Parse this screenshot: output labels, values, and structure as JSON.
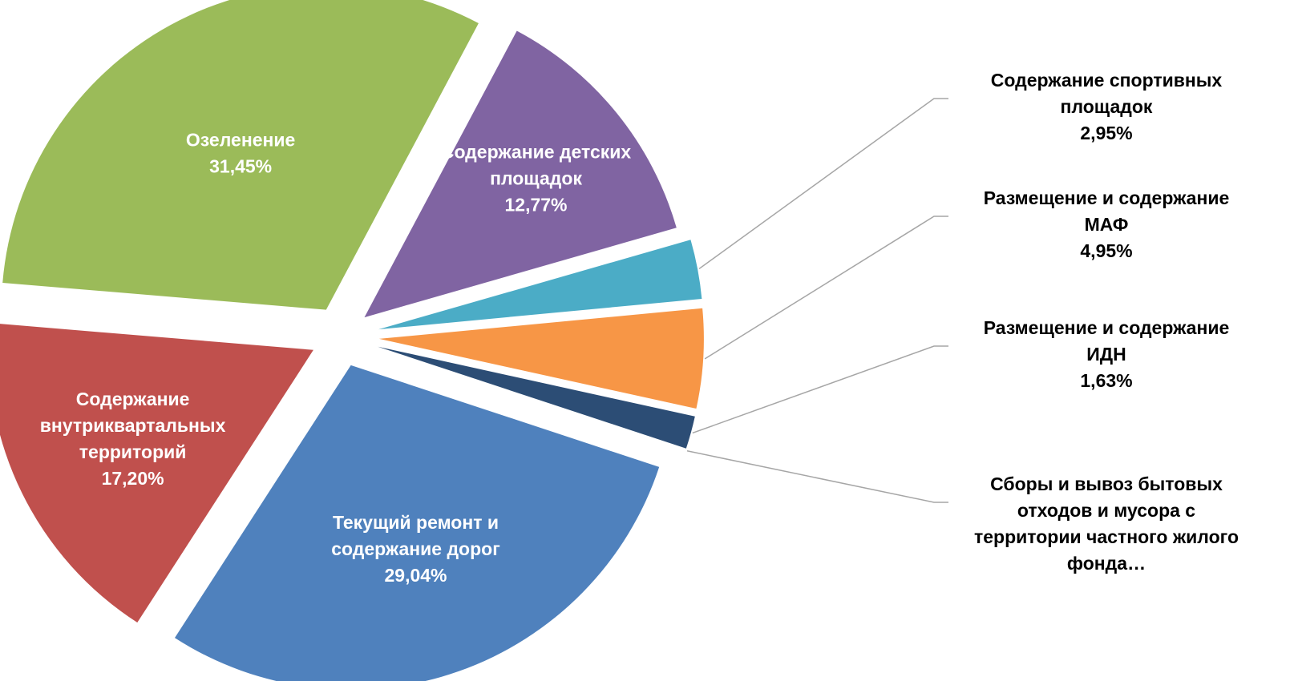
{
  "chart_data": {
    "type": "pie",
    "title": "",
    "slices": [
      {
        "label_lines": [
          "Содержание детских",
          "площадок"
        ],
        "value_text": "12,77%",
        "value": 12.77,
        "color": "#8064a2"
      },
      {
        "label_lines": [
          "Содержание спортивных",
          "площадок"
        ],
        "value_text": "2,95%",
        "value": 2.95,
        "color": "#4bacc6"
      },
      {
        "label_lines": [
          "Размещение и содержание",
          "МАФ"
        ],
        "value_text": "4,95%",
        "value": 4.95,
        "color": "#f79646"
      },
      {
        "label_lines": [
          "Размещение и содержание",
          "ИДН"
        ],
        "value_text": "1,63%",
        "value": 1.63,
        "color": "#2c4d75"
      },
      {
        "label_lines": [
          "Сборы и вывоз бытовых",
          "отходов и мусора с",
          "территории частного жилого",
          "фонда…"
        ],
        "value_text": "",
        "value": 0.0,
        "color": "#1f3864"
      },
      {
        "label_lines": [
          "Текущий ремонт и",
          "содержание дорог"
        ],
        "value_text": "29,04%",
        "value": 29.04,
        "color": "#4f81bd"
      },
      {
        "label_lines": [
          "Содержание",
          "внутриквартальных",
          "территорий"
        ],
        "value_text": "17,20%",
        "value": 17.2,
        "color": "#c0504d"
      },
      {
        "label_lines": [
          "Озеленение"
        ],
        "value_text": "31,45%",
        "value": 31.45,
        "color": "#9bbb59"
      }
    ]
  }
}
